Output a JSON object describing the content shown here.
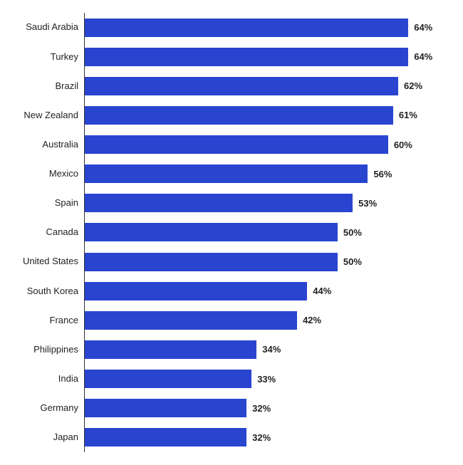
{
  "chart": {
    "type": "bar-horizontal",
    "xlim_max": 72,
    "bar_color": "#2945d0",
    "axis_color": "#333333",
    "background_color": "#ffffff",
    "label_color": "#222222",
    "label_fontsize": 13,
    "value_fontsize": 13,
    "value_fontweight": "700",
    "categories": [
      "Saudi Arabia",
      "Turkey",
      "Brazil",
      "New Zealand",
      "Australia",
      "Mexico",
      "Spain",
      "Canada",
      "United States",
      "South Korea",
      "France",
      "Philippines",
      "India",
      "Germany",
      "Japan"
    ],
    "values": [
      64,
      64,
      62,
      61,
      60,
      56,
      53,
      50,
      50,
      44,
      42,
      34,
      33,
      32,
      32
    ],
    "value_labels": [
      "64%",
      "64%",
      "62%",
      "61%",
      "60%",
      "56%",
      "53%",
      "50%",
      "50%",
      "44%",
      "42%",
      "34%",
      "33%",
      "32%",
      "32%"
    ]
  }
}
